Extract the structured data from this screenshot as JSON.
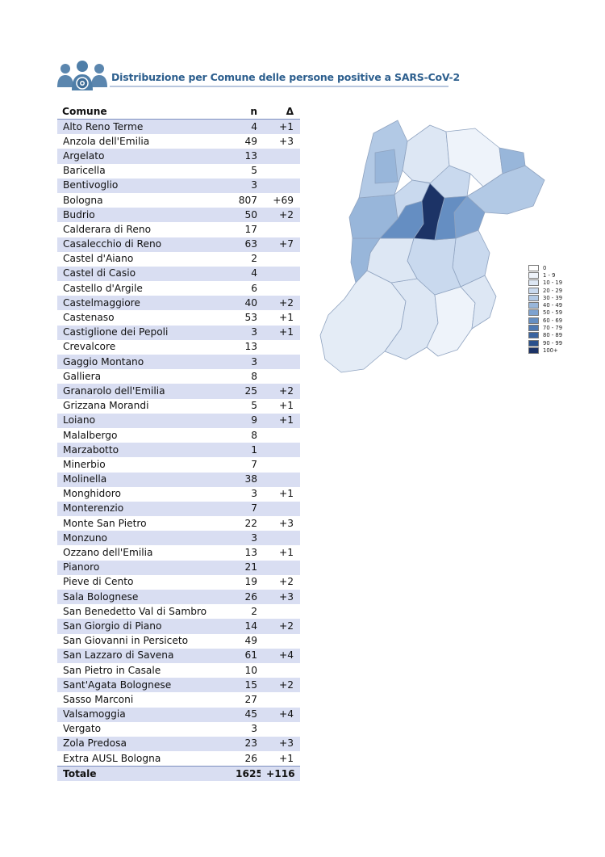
{
  "header": {
    "title": "Distribuzione per Comune delle persone positive a SARS-CoV-2"
  },
  "table": {
    "columns": [
      "Comune",
      "n",
      "Δ"
    ],
    "rows": [
      [
        "Alto Reno Terme",
        "4",
        "+1"
      ],
      [
        "Anzola dell'Emilia",
        "49",
        "+3"
      ],
      [
        "Argelato",
        "13",
        ""
      ],
      [
        "Baricella",
        "5",
        ""
      ],
      [
        "Bentivoglio",
        "3",
        ""
      ],
      [
        "Bologna",
        "807",
        "+69"
      ],
      [
        "Budrio",
        "50",
        "+2"
      ],
      [
        "Calderara di Reno",
        "17",
        ""
      ],
      [
        "Casalecchio di Reno",
        "63",
        "+7"
      ],
      [
        "Castel d'Aiano",
        "2",
        ""
      ],
      [
        "Castel di Casio",
        "4",
        ""
      ],
      [
        "Castello d'Argile",
        "6",
        ""
      ],
      [
        "Castelmaggiore",
        "40",
        "+2"
      ],
      [
        "Castenaso",
        "53",
        "+1"
      ],
      [
        "Castiglione dei Pepoli",
        "3",
        "+1"
      ],
      [
        "Crevalcore",
        "13",
        ""
      ],
      [
        "Gaggio Montano",
        "3",
        ""
      ],
      [
        "Galliera",
        "8",
        ""
      ],
      [
        "Granarolo dell'Emilia",
        "25",
        "+2"
      ],
      [
        "Grizzana Morandi",
        "5",
        "+1"
      ],
      [
        "Loiano",
        "9",
        "+1"
      ],
      [
        "Malalbergo",
        "8",
        ""
      ],
      [
        "Marzabotto",
        "1",
        ""
      ],
      [
        "Minerbio",
        "7",
        ""
      ],
      [
        "Molinella",
        "38",
        ""
      ],
      [
        "Monghidoro",
        "3",
        "+1"
      ],
      [
        "Monterenzio",
        "7",
        ""
      ],
      [
        "Monte San Pietro",
        "22",
        "+3"
      ],
      [
        "Monzuno",
        "3",
        ""
      ],
      [
        "Ozzano dell'Emilia",
        "13",
        "+1"
      ],
      [
        "Pianoro",
        "21",
        ""
      ],
      [
        "Pieve di Cento",
        "19",
        "+2"
      ],
      [
        "Sala Bolognese",
        "26",
        "+3"
      ],
      [
        "San Benedetto Val di Sambro",
        "2",
        ""
      ],
      [
        "San Giorgio di Piano",
        "14",
        "+2"
      ],
      [
        "San Giovanni in Persiceto",
        "49",
        ""
      ],
      [
        "San Lazzaro di Savena",
        "61",
        "+4"
      ],
      [
        "San Pietro in Casale",
        "10",
        ""
      ],
      [
        "Sant'Agata Bolognese",
        "15",
        "+2"
      ],
      [
        "Sasso Marconi",
        "27",
        ""
      ],
      [
        "Valsamoggia",
        "45",
        "+4"
      ],
      [
        "Vergato",
        "3",
        ""
      ],
      [
        "Zola Predosa",
        "23",
        "+3"
      ],
      [
        "Extra AUSL Bologna",
        "26",
        "+1"
      ]
    ],
    "total": [
      "Totale",
      "1625",
      "+116"
    ]
  },
  "legend": {
    "items": [
      {
        "label": "0",
        "color": "#ffffff"
      },
      {
        "label": "1 - 9",
        "color": "#eef3fa"
      },
      {
        "label": "10 - 19",
        "color": "#dde7f4"
      },
      {
        "label": "20 - 29",
        "color": "#c9d9ee"
      },
      {
        "label": "30 - 39",
        "color": "#b2c9e5"
      },
      {
        "label": "40 - 49",
        "color": "#98b6da"
      },
      {
        "label": "50 - 59",
        "color": "#7ea2cf"
      },
      {
        "label": "60 - 69",
        "color": "#658ec2"
      },
      {
        "label": "70 - 79",
        "color": "#4d78b2"
      },
      {
        "label": "80 - 89",
        "color": "#3a64a0"
      },
      {
        "label": "90 - 99",
        "color": "#2b518c"
      },
      {
        "label": "100+",
        "color": "#1c3366"
      }
    ]
  },
  "colors": {
    "accent": "#2d5f8e",
    "icon": "#4f7ea8",
    "row_stripe": "#d9def2"
  },
  "icons": {
    "header": "people-group-icon"
  }
}
